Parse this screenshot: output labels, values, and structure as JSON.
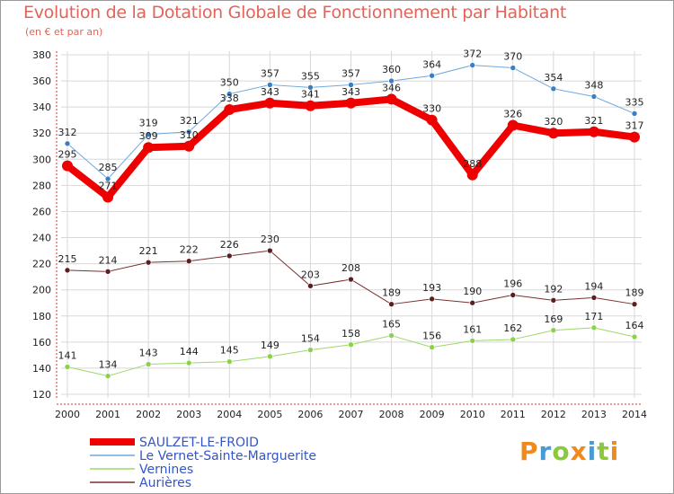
{
  "title": "Evolution de la Dotation Globale de Fonctionnement par Habitant",
  "subtitle": "(en € et par an)",
  "logo": {
    "letters": [
      "P",
      "r",
      "o",
      "x",
      "i",
      "t",
      "i"
    ],
    "colors": [
      "#f08a1c",
      "#4a9ad4",
      "#8cc83c",
      "#f08a1c",
      "#4a9ad4",
      "#8cc83c",
      "#f08a1c"
    ]
  },
  "chart_data": {
    "type": "line",
    "title": "Evolution de la Dotation Globale de Fonctionnement par Habitant",
    "subtitle": "(en € et par an)",
    "x": [
      "2000",
      "2001",
      "2002",
      "2003",
      "2004",
      "2005",
      "2006",
      "2007",
      "2008",
      "2009",
      "2010",
      "2011",
      "2012",
      "2013",
      "2014"
    ],
    "ylim": [
      120,
      380
    ],
    "yticks": [
      120,
      140,
      160,
      180,
      200,
      220,
      240,
      260,
      280,
      300,
      320,
      340,
      360,
      380
    ],
    "grid": true,
    "legend_position": "bottom-left",
    "series": [
      {
        "name": "SAULZET-LE-FROID",
        "color": "#ee0000",
        "values": [
          295,
          271,
          309,
          310,
          338,
          343,
          341,
          343,
          346,
          330,
          288,
          326,
          320,
          321,
          317
        ]
      },
      {
        "name": "Le Vernet-Sainte-Marguerite",
        "color": "#6fa8dc",
        "values": [
          312,
          285,
          319,
          321,
          350,
          357,
          355,
          357,
          360,
          364,
          372,
          370,
          354,
          348,
          335
        ]
      },
      {
        "name": "Vernines",
        "color": "#9ed86a",
        "values": [
          141,
          134,
          143,
          144,
          145,
          149,
          154,
          158,
          165,
          156,
          161,
          162,
          169,
          171,
          164
        ]
      },
      {
        "name": "Aurières",
        "color": "#7a2f2f",
        "values": [
          215,
          214,
          221,
          222,
          226,
          230,
          203,
          208,
          189,
          193,
          190,
          196,
          192,
          194,
          189
        ]
      }
    ]
  }
}
